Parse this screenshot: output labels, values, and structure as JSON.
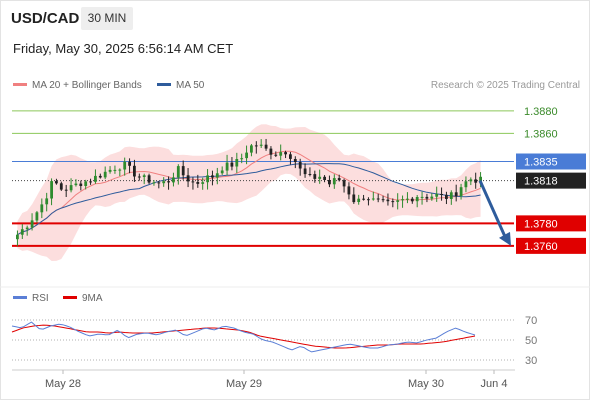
{
  "header": {
    "pair": "USD/CAD",
    "timeframe": "30 MIN",
    "datetime": "Friday, May 30, 2025 6:56:14 AM CET"
  },
  "legend": {
    "ma20": "MA 20 + Bollinger Bands",
    "ma50": "MA 50",
    "credit": "Research © 2025 Trading Central",
    "rsi": "RSI",
    "rsi_ma": "9MA"
  },
  "colors": {
    "ma20": "#f08080",
    "bollinger_band": "#fcdede",
    "ma50": "#2e5c9c",
    "candle_up": "#2e8b2e",
    "candle_down": "#222222",
    "resistance_green": "#8cc85a",
    "pivot_blue": "#4a7cd6",
    "support_red": "#e00000",
    "arrow": "#2e5c9c",
    "rsi": "#5b7fd6",
    "rsi_ma": "#e00000"
  },
  "chart_data": {
    "type": "candlestick",
    "title": "USD/CAD 30 MIN",
    "x_ticks": [
      "May 28",
      "May 29",
      "May 30",
      "Jun 4"
    ],
    "ylim": [
      1.3735,
      1.3895
    ],
    "levels": [
      {
        "label": "1.3880",
        "value": 1.388,
        "kind": "resistance"
      },
      {
        "label": "1.3860",
        "value": 1.386,
        "kind": "resistance"
      },
      {
        "label": "1.3835",
        "value": 1.3835,
        "kind": "pivot"
      },
      {
        "label": "1.3818",
        "value": 1.3818,
        "kind": "last"
      },
      {
        "label": "1.3780",
        "value": 1.378,
        "kind": "support"
      },
      {
        "label": "1.3760",
        "value": 1.376,
        "kind": "support"
      }
    ],
    "close_path": [
      1.377,
      1.3778,
      1.3788,
      1.38,
      1.3818,
      1.381,
      1.3812,
      1.3816,
      1.3818,
      1.3822,
      1.3826,
      1.383,
      1.3832,
      1.3825,
      1.382,
      1.3818,
      1.3815,
      1.3818,
      1.3828,
      1.382,
      1.3815,
      1.382,
      1.3822,
      1.383,
      1.3832,
      1.3836,
      1.3848,
      1.385,
      1.3845,
      1.3842,
      1.3845,
      1.3838,
      1.3824,
      1.382,
      1.3822,
      1.3815,
      1.382,
      1.381,
      1.3798,
      1.3805,
      1.38,
      1.3798,
      1.3796,
      1.38,
      1.3802,
      1.3805,
      1.3804,
      1.3805,
      1.3803,
      1.3805,
      1.3815,
      1.382,
      1.3818
    ],
    "rsi_ticks": [
      70,
      50,
      30
    ],
    "rsi_ylim": [
      20,
      78
    ],
    "rsi_path": [
      64,
      62,
      68,
      60,
      64,
      66,
      63,
      58,
      54,
      56,
      55,
      60,
      52,
      56,
      57,
      55,
      58,
      60,
      54,
      58,
      62,
      60,
      64,
      62,
      58,
      56,
      50,
      48,
      44,
      40,
      44,
      38,
      40,
      42,
      44,
      46,
      44,
      42,
      42,
      45,
      46,
      48,
      47,
      50,
      52,
      58,
      62,
      58,
      55
    ],
    "rsi_ma_path": [
      58,
      62,
      64,
      65,
      64,
      62,
      60,
      58,
      58,
      57,
      58,
      57,
      57,
      57,
      58,
      59,
      60,
      61,
      62,
      62,
      61,
      60,
      58,
      54,
      52,
      50,
      48,
      46,
      44,
      43,
      42,
      42,
      43,
      44,
      45,
      45,
      46,
      46,
      46,
      47,
      48,
      50,
      52,
      54
    ]
  }
}
